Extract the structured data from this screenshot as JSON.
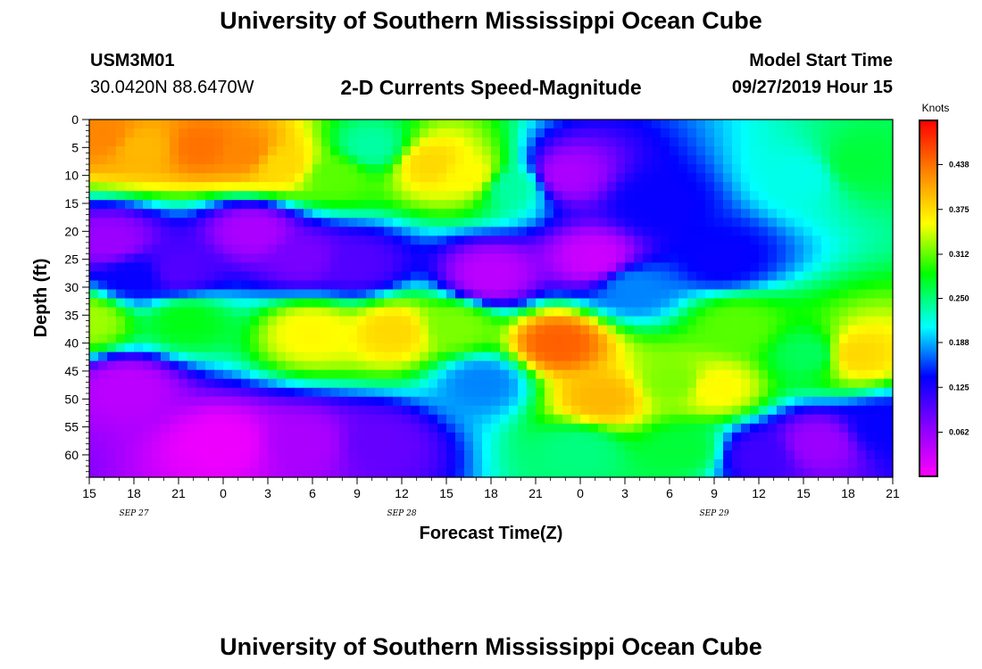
{
  "page": {
    "title_top": "University of Southern Mississippi Ocean Cube",
    "title_bottom": "University of Southern Mississippi Ocean Cube",
    "station_id": "USM3M01",
    "station_coords": "30.0420N 88.6470W",
    "chart_title": "2-D Currents Speed-Magnitude",
    "model_start_label": "Model Start Time",
    "model_start_value": "09/27/2019 Hour 15"
  },
  "chart_data": {
    "type": "heatmap",
    "title": "2-D Currents Speed-Magnitude",
    "xlabel": "Forecast Time(Z)",
    "ylabel": "Depth (ft)",
    "x_tick_labels": [
      "15",
      "18",
      "21",
      "0",
      "3",
      "6",
      "9",
      "12",
      "15",
      "18",
      "21",
      "0",
      "3",
      "6",
      "9",
      "12",
      "15",
      "18",
      "21"
    ],
    "x_range_hours": [
      0,
      54
    ],
    "date_labels": [
      {
        "text": "SEP 27",
        "at_tick": 1
      },
      {
        "text": "SEP 28",
        "at_tick": 7
      },
      {
        "text": "SEP 29",
        "at_tick": 14
      }
    ],
    "y_ticks": [
      0,
      5,
      10,
      15,
      20,
      25,
      30,
      35,
      40,
      45,
      50,
      55,
      60
    ],
    "ylim": [
      0,
      64
    ],
    "colorbar": {
      "units": "Knots",
      "tick_values": [
        "0.438",
        "0.375",
        "0.312",
        "0.250",
        "0.188",
        "0.125",
        "0.062"
      ],
      "range": [
        0,
        0.5
      ],
      "colors": [
        "#ff00ff",
        "#8800ff",
        "#0000ff",
        "#00ffff",
        "#00ff00",
        "#ffff00",
        "#ff8800",
        "#ff0000"
      ]
    },
    "features": [
      {
        "t": 1.0,
        "d": 3,
        "v": 0.43
      },
      {
        "t": 3.5,
        "d": 5,
        "v": 0.4
      },
      {
        "t": 7.5,
        "d": 5,
        "v": 0.44
      },
      {
        "t": 10.5,
        "d": 6,
        "v": 0.43
      },
      {
        "t": 13.0,
        "d": 8,
        "v": 0.38
      },
      {
        "t": 16.5,
        "d": 10,
        "v": 0.31
      },
      {
        "t": 19.0,
        "d": 5,
        "v": 0.24
      },
      {
        "t": 23.0,
        "d": 8,
        "v": 0.38
      },
      {
        "t": 25.5,
        "d": 10,
        "v": 0.36
      },
      {
        "t": 28.5,
        "d": 12,
        "v": 0.24
      },
      {
        "t": 32.0,
        "d": 10,
        "v": 0.05
      },
      {
        "t": 38.0,
        "d": 15,
        "v": 0.14
      },
      {
        "t": 42.5,
        "d": 25,
        "v": 0.14
      },
      {
        "t": 48.0,
        "d": 10,
        "v": 0.22
      },
      {
        "t": 51.5,
        "d": 8,
        "v": 0.27
      },
      {
        "t": 1.5,
        "d": 22,
        "v": 0.06
      },
      {
        "t": 3.0,
        "d": 28,
        "v": 0.14
      },
      {
        "t": 6.0,
        "d": 27,
        "v": 0.1
      },
      {
        "t": 11.0,
        "d": 20,
        "v": 0.05
      },
      {
        "t": 14.5,
        "d": 25,
        "v": 0.08
      },
      {
        "t": 18.0,
        "d": 26,
        "v": 0.1
      },
      {
        "t": 27.0,
        "d": 28,
        "v": 0.04
      },
      {
        "t": 34.0,
        "d": 25,
        "v": 0.03
      },
      {
        "t": 0.0,
        "d": 36,
        "v": 0.33
      },
      {
        "t": 6.5,
        "d": 36,
        "v": 0.28
      },
      {
        "t": 15.0,
        "d": 38,
        "v": 0.36
      },
      {
        "t": 20.5,
        "d": 38,
        "v": 0.38
      },
      {
        "t": 24.5,
        "d": 37,
        "v": 0.32
      },
      {
        "t": 31.5,
        "d": 40,
        "v": 0.45
      },
      {
        "t": 34.5,
        "d": 50,
        "v": 0.4
      },
      {
        "t": 36.5,
        "d": 30,
        "v": 0.18
      },
      {
        "t": 39.5,
        "d": 47,
        "v": 0.32
      },
      {
        "t": 42.0,
        "d": 48,
        "v": 0.36
      },
      {
        "t": 43.5,
        "d": 37,
        "v": 0.31
      },
      {
        "t": 48.5,
        "d": 42,
        "v": 0.26
      },
      {
        "t": 51.5,
        "d": 42,
        "v": 0.38
      },
      {
        "t": 2.5,
        "d": 48,
        "v": 0.04
      },
      {
        "t": 9.0,
        "d": 58,
        "v": 0.01
      },
      {
        "t": 14.5,
        "d": 58,
        "v": 0.05
      },
      {
        "t": 19.5,
        "d": 58,
        "v": 0.09
      },
      {
        "t": 26.5,
        "d": 47,
        "v": 0.18
      },
      {
        "t": 33.0,
        "d": 59,
        "v": 0.25
      },
      {
        "t": 40.0,
        "d": 59,
        "v": 0.27
      },
      {
        "t": 45.0,
        "d": 60,
        "v": 0.11
      },
      {
        "t": 49.0,
        "d": 58,
        "v": 0.06
      },
      {
        "t": 53.5,
        "d": 55,
        "v": 0.14
      }
    ]
  }
}
